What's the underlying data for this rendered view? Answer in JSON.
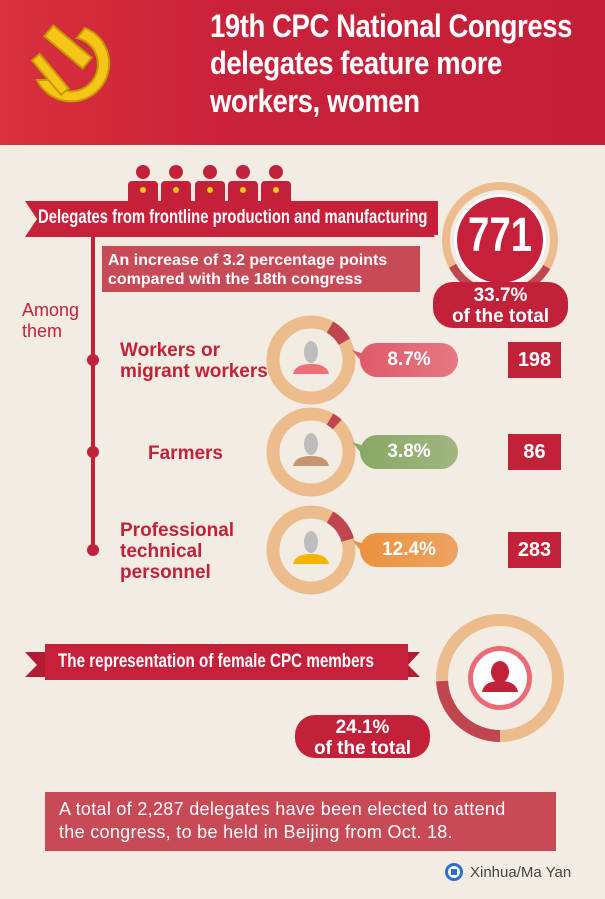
{
  "header": {
    "title_lines": [
      "19th CPC National Congress",
      "delegates feature more",
      "workers, women"
    ],
    "logo": "hammer-and-sickle-emblem"
  },
  "frontline": {
    "ribbon_label": "Delegates from frontline production and manufacturing",
    "total_count": "771",
    "share_line1": "33.7%",
    "share_line2": "of the total",
    "share_value": 33.7,
    "increase_line1": "An increase of 3.2 percentage points",
    "increase_line2": "compared with the 18th congress"
  },
  "among": {
    "label_line1": "Among",
    "label_line2": "them"
  },
  "categories": [
    {
      "label_lines": [
        "Workers or",
        "migrant workers"
      ],
      "percent": "8.7%",
      "value": 8.7,
      "count": "198",
      "pill_color": "#e15a6a",
      "body_color": "#ee6f78"
    },
    {
      "label_lines": [
        "Farmers"
      ],
      "percent": "3.8%",
      "value": 3.8,
      "count": "86",
      "pill_color": "#8aa866",
      "body_color": "#c79471"
    },
    {
      "label_lines": [
        "Professional",
        "technical",
        "personnel"
      ],
      "percent": "12.4%",
      "value": 12.4,
      "count": "283",
      "pill_color": "#ec9140",
      "body_color": "#f4b400"
    }
  ],
  "female": {
    "ribbon_label": "The representation of female CPC members",
    "share_line1": "24.1%",
    "share_line2": "of the total",
    "share_value": 24.1
  },
  "footer": {
    "note_line1": "A total of 2,287 delegates have been elected to attend",
    "note_line2": "the congress, to be held in Beijing from Oct. 18.",
    "credit": "Xinhua/Ma Yan"
  },
  "colors": {
    "red": "#c3213a",
    "ring": "#ecbc8d",
    "ring_dark": "#c0454f",
    "box": "#c94a57",
    "background": "#f3ece2"
  }
}
